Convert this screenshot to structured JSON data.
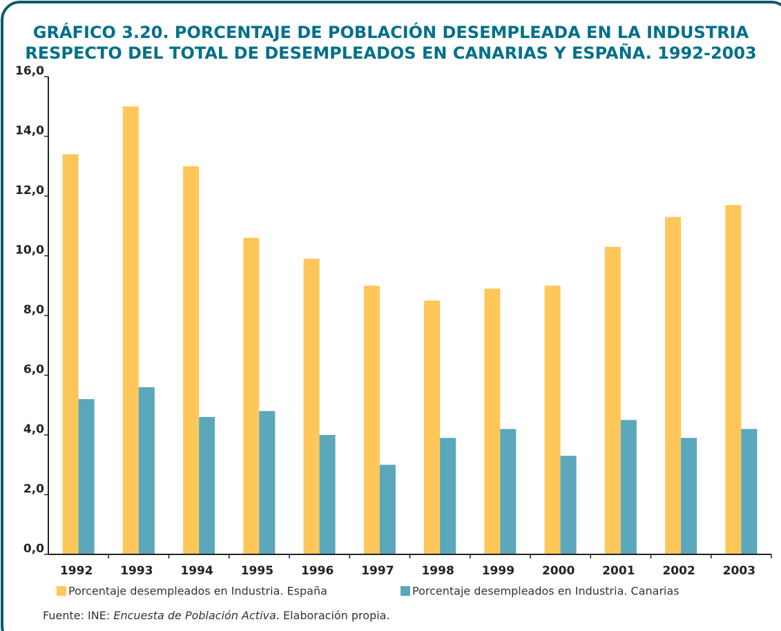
{
  "chart_data": {
    "type": "bar",
    "title": [
      "GRÁFICO 3.20. PORCENTAJE DE POBLACIÓN DESEMPLEADA EN LA INDUSTRIA",
      "RESPECTO DEL TOTAL DE DESEMPLEADOS EN CANARIAS Y ESPAÑA. 1992-2003"
    ],
    "categories": [
      "1992",
      "1993",
      "1994",
      "1995",
      "1996",
      "1997",
      "1998",
      "1999",
      "2000",
      "2001",
      "2002",
      "2003"
    ],
    "series": [
      {
        "name": "Porcentaje desempleados en Industria. España",
        "color": "#ffc65a",
        "values": [
          13.4,
          15.0,
          13.0,
          10.6,
          9.9,
          9.0,
          8.5,
          8.9,
          9.0,
          10.3,
          11.3,
          11.7
        ]
      },
      {
        "name": "Porcentaje desempleados en Industria. Canarias",
        "color": "#5ba7bb",
        "values": [
          5.2,
          5.6,
          4.6,
          4.8,
          4.0,
          3.0,
          3.9,
          4.2,
          3.3,
          4.5,
          3.9,
          4.2
        ]
      }
    ],
    "ylim": [
      0,
      16
    ],
    "yticks": [
      {
        "value": 0,
        "label": "0,0"
      },
      {
        "value": 2,
        "label": "2,0"
      },
      {
        "value": 4,
        "label": "4,0"
      },
      {
        "value": 6,
        "label": "6,0"
      },
      {
        "value": 8,
        "label": "8,0"
      },
      {
        "value": 10,
        "label": "10,0"
      },
      {
        "value": 12,
        "label": "12,0"
      },
      {
        "value": 14,
        "label": "14,0"
      },
      {
        "value": 16,
        "label": "16,0"
      }
    ],
    "grid": false,
    "source": [
      "Fuente: INE: ",
      "Encuesta de Población Activa",
      ". Elaboración propia."
    ]
  }
}
